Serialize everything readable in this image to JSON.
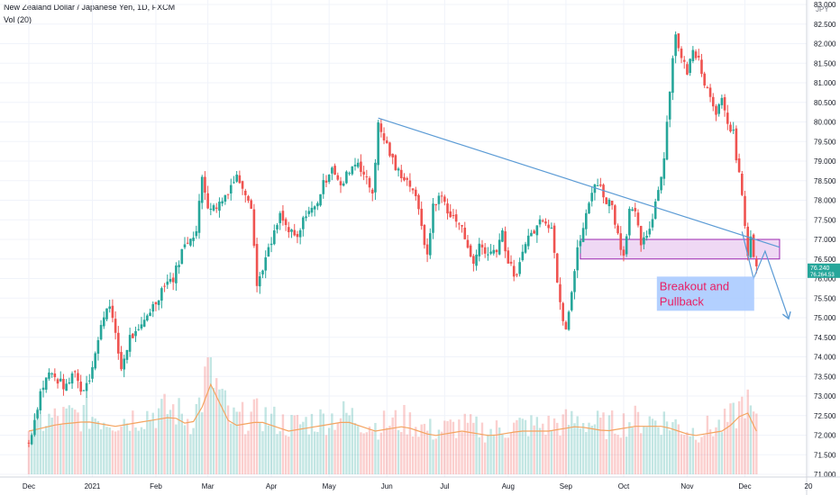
{
  "header": {
    "symbol_title": "New Zealand Dollar / Japanese Yen, 1D, FXCM",
    "indicator": "Vol (20)",
    "currency": "JPY"
  },
  "annotation": {
    "line1": "Breakout and",
    "line2": "Pullback"
  },
  "price_label_main": "76.240",
  "price_label_sub": "76.264.53",
  "chart_data": {
    "type": "candlestick",
    "ylim": [
      71.0,
      83.0
    ],
    "y_ticks": [
      "83.000",
      "82.500",
      "82.000",
      "81.500",
      "81.000",
      "80.500",
      "80.000",
      "79.500",
      "79.000",
      "78.500",
      "78.000",
      "77.500",
      "77.000",
      "76.500",
      "76.000",
      "75.500",
      "75.000",
      "74.500",
      "74.000",
      "73.500",
      "73.000",
      "72.500",
      "72.000",
      "71.500",
      "71.000"
    ],
    "x_ticks": [
      {
        "label": "Dec",
        "day": 0
      },
      {
        "label": "2021",
        "day": 22
      },
      {
        "label": "Feb",
        "day": 44
      },
      {
        "label": "Mar",
        "day": 62
      },
      {
        "label": "Apr",
        "day": 84
      },
      {
        "label": "May",
        "day": 104
      },
      {
        "label": "Jun",
        "day": 124
      },
      {
        "label": "Jul",
        "day": 144
      },
      {
        "label": "Aug",
        "day": 166
      },
      {
        "label": "Sep",
        "day": 186
      },
      {
        "label": "Oct",
        "day": 206
      },
      {
        "label": "Nov",
        "day": 228
      },
      {
        "label": "Dec",
        "day": 248
      },
      {
        "label": "20",
        "day": 270
      }
    ],
    "day_range": [
      -8,
      272
    ],
    "price_anchors": [
      [
        0,
        71.8
      ],
      [
        2,
        72.4
      ],
      [
        4,
        73.1
      ],
      [
        7,
        73.6
      ],
      [
        10,
        73.4
      ],
      [
        13,
        73.2
      ],
      [
        16,
        73.7
      ],
      [
        18,
        73.1
      ],
      [
        21,
        73.5
      ],
      [
        24,
        74.4
      ],
      [
        26,
        75.1
      ],
      [
        28,
        75.4
      ],
      [
        30,
        74.5
      ],
      [
        32,
        73.7
      ],
      [
        35,
        74.5
      ],
      [
        38,
        74.6
      ],
      [
        41,
        75.1
      ],
      [
        44,
        75.4
      ],
      [
        47,
        75.9
      ],
      [
        50,
        76.0
      ],
      [
        53,
        76.7
      ],
      [
        56,
        77.1
      ],
      [
        58,
        77.2
      ],
      [
        60,
        78.6
      ],
      [
        62,
        77.9
      ],
      [
        64,
        77.8
      ],
      [
        67,
        78.0
      ],
      [
        70,
        78.4
      ],
      [
        72,
        78.6
      ],
      [
        74,
        78.4
      ],
      [
        77,
        77.9
      ],
      [
        79,
        75.8
      ],
      [
        81,
        76.3
      ],
      [
        84,
        76.9
      ],
      [
        87,
        77.6
      ],
      [
        90,
        77.2
      ],
      [
        93,
        77.0
      ],
      [
        96,
        77.7
      ],
      [
        99,
        77.8
      ],
      [
        102,
        78.4
      ],
      [
        105,
        78.9
      ],
      [
        108,
        78.3
      ],
      [
        111,
        78.8
      ],
      [
        114,
        79.0
      ],
      [
        117,
        78.5
      ],
      [
        119,
        78.2
      ],
      [
        121,
        79.9
      ],
      [
        124,
        79.4
      ],
      [
        127,
        78.8
      ],
      [
        130,
        78.6
      ],
      [
        133,
        78.3
      ],
      [
        136,
        77.4
      ],
      [
        138,
        76.5
      ],
      [
        140,
        77.9
      ],
      [
        143,
        78.1
      ],
      [
        146,
        77.6
      ],
      [
        149,
        77.4
      ],
      [
        152,
        76.9
      ],
      [
        154,
        76.3
      ],
      [
        156,
        76.9
      ],
      [
        159,
        76.6
      ],
      [
        162,
        76.8
      ],
      [
        164,
        77.2
      ],
      [
        166,
        76.4
      ],
      [
        169,
        76.0
      ],
      [
        172,
        77.0
      ],
      [
        175,
        77.2
      ],
      [
        178,
        77.6
      ],
      [
        181,
        77.3
      ],
      [
        183,
        76.0
      ],
      [
        185,
        75.0
      ],
      [
        186,
        74.8
      ],
      [
        188,
        75.7
      ],
      [
        190,
        76.7
      ],
      [
        192,
        77.3
      ],
      [
        194,
        77.9
      ],
      [
        196,
        78.5
      ],
      [
        198,
        78.3
      ],
      [
        200,
        78.0
      ],
      [
        202,
        77.9
      ],
      [
        204,
        77.1
      ],
      [
        206,
        76.6
      ],
      [
        208,
        77.8
      ],
      [
        210,
        77.6
      ],
      [
        212,
        76.9
      ],
      [
        214,
        77.0
      ],
      [
        216,
        77.6
      ],
      [
        218,
        78.3
      ],
      [
        220,
        79.1
      ],
      [
        222,
        80.9
      ],
      [
        224,
        82.3
      ],
      [
        226,
        81.6
      ],
      [
        228,
        81.3
      ],
      [
        230,
        81.8
      ],
      [
        232,
        81.7
      ],
      [
        234,
        81.0
      ],
      [
        236,
        80.7
      ],
      [
        238,
        80.3
      ],
      [
        240,
        80.5
      ],
      [
        242,
        79.9
      ],
      [
        244,
        79.8
      ],
      [
        245,
        79.0
      ],
      [
        247,
        78.2
      ],
      [
        248,
        77.3
      ],
      [
        249,
        76.5
      ],
      [
        250,
        77.1
      ],
      [
        251,
        76.6
      ],
      [
        252,
        76.2
      ]
    ],
    "volume_anchors": [
      [
        0,
        0.45
      ],
      [
        10,
        0.52
      ],
      [
        20,
        0.55
      ],
      [
        30,
        0.5
      ],
      [
        40,
        0.55
      ],
      [
        50,
        0.6
      ],
      [
        56,
        0.5
      ],
      [
        60,
        0.7
      ],
      [
        62,
        1.0
      ],
      [
        70,
        0.5
      ],
      [
        80,
        0.55
      ],
      [
        90,
        0.45
      ],
      [
        100,
        0.5
      ],
      [
        110,
        0.55
      ],
      [
        120,
        0.45
      ],
      [
        130,
        0.5
      ],
      [
        140,
        0.4
      ],
      [
        150,
        0.45
      ],
      [
        160,
        0.4
      ],
      [
        170,
        0.45
      ],
      [
        180,
        0.45
      ],
      [
        190,
        0.5
      ],
      [
        200,
        0.45
      ],
      [
        210,
        0.5
      ],
      [
        220,
        0.5
      ],
      [
        230,
        0.4
      ],
      [
        240,
        0.45
      ],
      [
        245,
        0.55
      ],
      [
        248,
        0.7
      ],
      [
        252,
        0.45
      ]
    ],
    "trendline": [
      [
        121,
        80.1
      ],
      [
        260,
        76.8
      ]
    ],
    "zone": {
      "day_start": 191,
      "day_end": 260,
      "low": 76.5,
      "high": 77.0
    },
    "pullback_path": [
      [
        247,
        77.2
      ],
      [
        251,
        76.0
      ],
      [
        255,
        76.7
      ],
      [
        263,
        75.0
      ]
    ],
    "colors": {
      "up": "#26a69a",
      "down": "#ef5350",
      "trendline": "#5b9bd5",
      "zone_fill": "#e8c8ef",
      "zone_border": "#9c27b0",
      "annotation_bg": "#a6c8ff",
      "annotation_text": "#e91e63",
      "ma_line": "#f4a460"
    }
  }
}
